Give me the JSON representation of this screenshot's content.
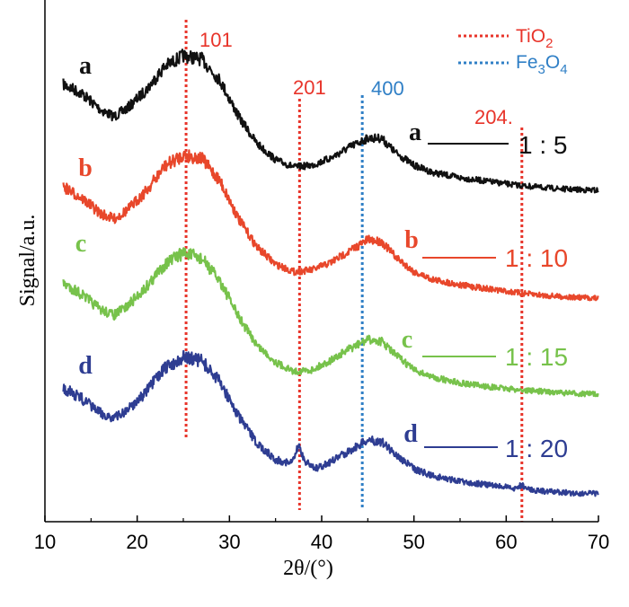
{
  "chart_data": {
    "type": "line",
    "title": "",
    "xlabel": "2θ/(°)",
    "ylabel": "Signal/a.u.",
    "xlim": [
      10,
      70
    ],
    "x_ticks": [
      "10",
      "20",
      "30",
      "40",
      "50",
      "60",
      "70"
    ],
    "grid": false,
    "reference_lines": [
      {
        "x": 25.3,
        "label": "101",
        "phase": "TiO2",
        "color": "#e8342a"
      },
      {
        "x": 37.6,
        "label": "201",
        "phase": "TiO2",
        "color": "#e8342a"
      },
      {
        "x": 44.4,
        "label": "400",
        "phase": "Fe3O4",
        "color": "#2f7fc6"
      },
      {
        "x": 61.7,
        "label": "204.",
        "phase": "TiO2",
        "color": "#e8342a"
      }
    ],
    "legend": {
      "placement": "top-right",
      "entries": [
        {
          "label_main": "TiO",
          "label_sub": "2",
          "label_tail": "",
          "color": "#e8342a",
          "style": "dotted"
        },
        {
          "label_main": "Fe",
          "label_sub": "3",
          "label_tail": "O",
          "label_sub2": "4",
          "color": "#2f7fc6",
          "style": "dotted"
        }
      ]
    },
    "series": [
      {
        "letter": "a",
        "ratio": "1 : 5",
        "color": "#111111",
        "points": [
          [
            12,
            58
          ],
          [
            14,
            53
          ],
          [
            16,
            44
          ],
          [
            17.5,
            40
          ],
          [
            19,
            45
          ],
          [
            21,
            55
          ],
          [
            23,
            68
          ],
          [
            25,
            74
          ],
          [
            27,
            72
          ],
          [
            29,
            60
          ],
          [
            31,
            40
          ],
          [
            33,
            25
          ],
          [
            35,
            16
          ],
          [
            37,
            12
          ],
          [
            39,
            13
          ],
          [
            41,
            17
          ],
          [
            43,
            23
          ],
          [
            45,
            28
          ],
          [
            46.5,
            28
          ],
          [
            48,
            20
          ],
          [
            50,
            13
          ],
          [
            52,
            9
          ],
          [
            55,
            6
          ],
          [
            58,
            4
          ],
          [
            61,
            2
          ],
          [
            64,
            0.5
          ],
          [
            67,
            -0.5
          ],
          [
            70,
            -1
          ]
        ]
      },
      {
        "letter": "b",
        "ratio": "1 : 10",
        "color": "#e8472b",
        "points": [
          [
            12,
            58
          ],
          [
            14,
            52
          ],
          [
            16,
            44
          ],
          [
            17.5,
            41
          ],
          [
            19,
            46
          ],
          [
            21,
            56
          ],
          [
            23,
            69
          ],
          [
            25,
            75
          ],
          [
            27,
            73
          ],
          [
            29,
            61
          ],
          [
            31,
            41
          ],
          [
            33,
            26
          ],
          [
            35,
            17
          ],
          [
            37,
            13
          ],
          [
            39,
            14
          ],
          [
            41,
            18
          ],
          [
            43,
            24
          ],
          [
            45,
            30
          ],
          [
            46.5,
            29
          ],
          [
            48,
            21
          ],
          [
            50,
            13
          ],
          [
            52,
            9
          ],
          [
            55,
            6
          ],
          [
            58,
            4
          ],
          [
            61,
            2
          ],
          [
            64,
            0.5
          ],
          [
            67,
            -0.5
          ],
          [
            70,
            -1
          ]
        ]
      },
      {
        "letter": "c",
        "ratio": "1 : 15",
        "color": "#77c24b",
        "points": [
          [
            12,
            58
          ],
          [
            14,
            52
          ],
          [
            16,
            44
          ],
          [
            17.5,
            41
          ],
          [
            19,
            46
          ],
          [
            21,
            56
          ],
          [
            23,
            68
          ],
          [
            25,
            74
          ],
          [
            27,
            71
          ],
          [
            29,
            59
          ],
          [
            31,
            40
          ],
          [
            33,
            25
          ],
          [
            35,
            16
          ],
          [
            37,
            11
          ],
          [
            39,
            12
          ],
          [
            41,
            17
          ],
          [
            43,
            23
          ],
          [
            45,
            28
          ],
          [
            46.5,
            27
          ],
          [
            48,
            20
          ],
          [
            50,
            12
          ],
          [
            52,
            8
          ],
          [
            55,
            5
          ],
          [
            58,
            3
          ],
          [
            61,
            1.5
          ],
          [
            64,
            0.5
          ],
          [
            67,
            -0.5
          ],
          [
            70,
            -1
          ]
        ]
      },
      {
        "letter": "d",
        "ratio": "1 : 20",
        "color": "#2e3d92",
        "points": [
          [
            12,
            58
          ],
          [
            14,
            52
          ],
          [
            16,
            44
          ],
          [
            17.5,
            41
          ],
          [
            19,
            46
          ],
          [
            21,
            56
          ],
          [
            23,
            69
          ],
          [
            25,
            75
          ],
          [
            27,
            73
          ],
          [
            29,
            61
          ],
          [
            31,
            42
          ],
          [
            33,
            27
          ],
          [
            35,
            18
          ],
          [
            36.8,
            16
          ],
          [
            37.5,
            26
          ],
          [
            38.2,
            17
          ],
          [
            39.5,
            13
          ],
          [
            41,
            17
          ],
          [
            43,
            23
          ],
          [
            45,
            29
          ],
          [
            46.5,
            28
          ],
          [
            48,
            21
          ],
          [
            50,
            13
          ],
          [
            52,
            9
          ],
          [
            55,
            6
          ],
          [
            58,
            4
          ],
          [
            61,
            2
          ],
          [
            61.7,
            4
          ],
          [
            62.4,
            1.5
          ],
          [
            64,
            0.5
          ],
          [
            67,
            -0.5
          ],
          [
            70,
            -1
          ]
        ]
      }
    ]
  }
}
